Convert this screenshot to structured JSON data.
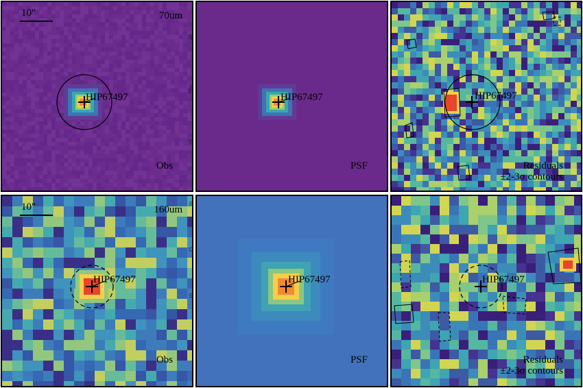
{
  "target_name": "HIP67497",
  "scale_bar_label": "10\"",
  "rows": [
    {
      "band": "70um",
      "panels": [
        {
          "kind": "obs",
          "label": "Obs",
          "aperture": "solid"
        },
        {
          "kind": "psf",
          "label": "PSF",
          "aperture": "none"
        },
        {
          "kind": "res",
          "label_line1": "Residuals",
          "label_line2": "±2-3σ contours",
          "aperture": "solid"
        }
      ]
    },
    {
      "band": "160um",
      "panels": [
        {
          "kind": "obs",
          "label": "Obs",
          "aperture": "dashed"
        },
        {
          "kind": "psf",
          "label": "PSF",
          "aperture": "none"
        },
        {
          "kind": "res",
          "label_line1": "Residuals",
          "label_line2": "±2-3σ contours",
          "aperture": "dashed"
        }
      ]
    }
  ],
  "psf_axis_ticks_top": [
    "10",
    "20",
    "30",
    "40"
  ],
  "psf_axis_ticks_bottom": [
    "10",
    "15",
    "20"
  ],
  "colors": {
    "bg_70_obs": "#6a2a8c",
    "bg_70_psf": "#6a2a8c",
    "bg_160_obs": "#3d6fb5",
    "bg_160_psf": "#4272bb",
    "peak_red": "#e8452a",
    "peak_orange": "#f28b30",
    "peak_yellow": "#f5d24a",
    "teal": "#2fa5a6"
  }
}
